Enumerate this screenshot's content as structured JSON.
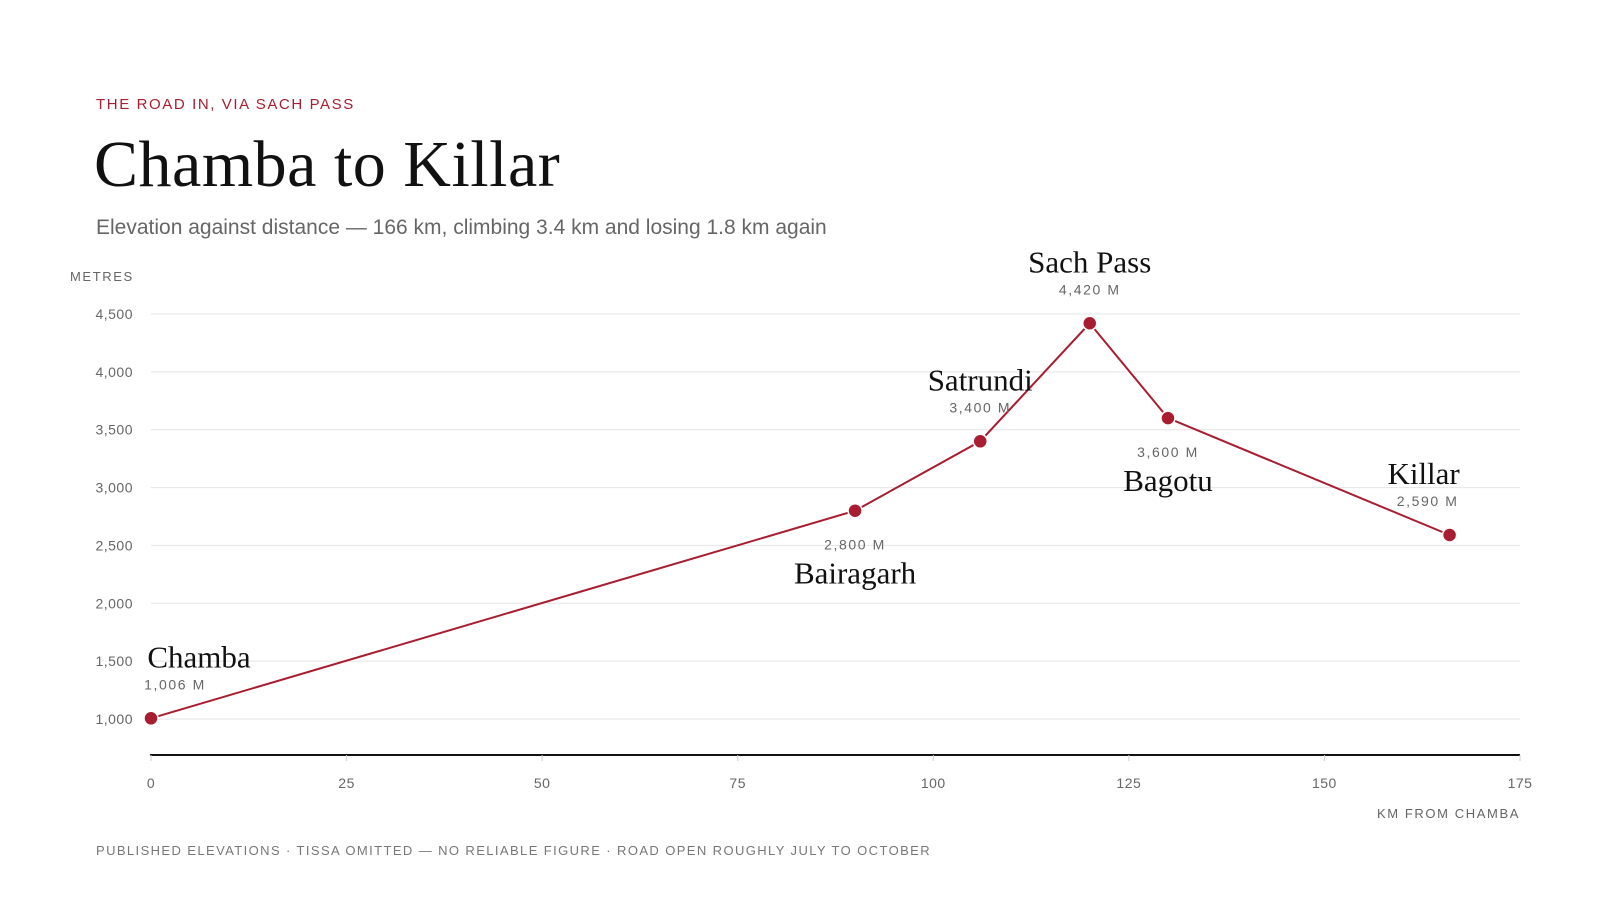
{
  "header": {
    "kicker": "THE ROAD IN, VIA SACH PASS",
    "title": "Chamba to Killar",
    "subtitle": "Elevation against distance — 166 km, climbing 3.4 km and losing 1.8 km again"
  },
  "footnote": "PUBLISHED ELEVATIONS · TISSA OMITTED — NO RELIABLE FIGURE · ROAD OPEN ROUGHLY JULY TO OCTOBER",
  "colors": {
    "accent": "#a81d2f",
    "grid": "#e4e4e4",
    "axis": "#111111",
    "text_muted": "#666666"
  },
  "chart_data": {
    "type": "line",
    "title": "Chamba to Killar",
    "xlabel": "KM FROM CHAMBA",
    "ylabel": "METRES",
    "xlim": [
      0,
      175
    ],
    "ylim": [
      700,
      4500
    ],
    "x_ticks": [
      0,
      25,
      50,
      75,
      100,
      125,
      150,
      175
    ],
    "x_tick_labels": [
      "0",
      "25",
      "50",
      "75",
      "100",
      "125",
      "150",
      "175"
    ],
    "y_ticks": [
      1000,
      1500,
      2000,
      2500,
      3000,
      3500,
      4000,
      4500
    ],
    "y_tick_labels": [
      "1,000",
      "1,500",
      "2,000",
      "2,500",
      "3,000",
      "3,500",
      "4,000",
      "4,500"
    ],
    "grid": true,
    "points": [
      {
        "name": "Chamba",
        "km": 0,
        "elevation": 1006,
        "elevation_label": "1,006 M",
        "label_side": "above"
      },
      {
        "name": "Bairagarh",
        "km": 90,
        "elevation": 2800,
        "elevation_label": "2,800 M",
        "label_side": "below"
      },
      {
        "name": "Satrundi",
        "km": 106,
        "elevation": 3400,
        "elevation_label": "3,400 M",
        "label_side": "above"
      },
      {
        "name": "Sach Pass",
        "km": 120,
        "elevation": 4420,
        "elevation_label": "4,420 M",
        "label_side": "above"
      },
      {
        "name": "Bagotu",
        "km": 130,
        "elevation": 3600,
        "elevation_label": "3,600 M",
        "label_side": "below"
      },
      {
        "name": "Killar",
        "km": 166,
        "elevation": 2590,
        "elevation_label": "2,590 M",
        "label_side": "above"
      }
    ]
  }
}
